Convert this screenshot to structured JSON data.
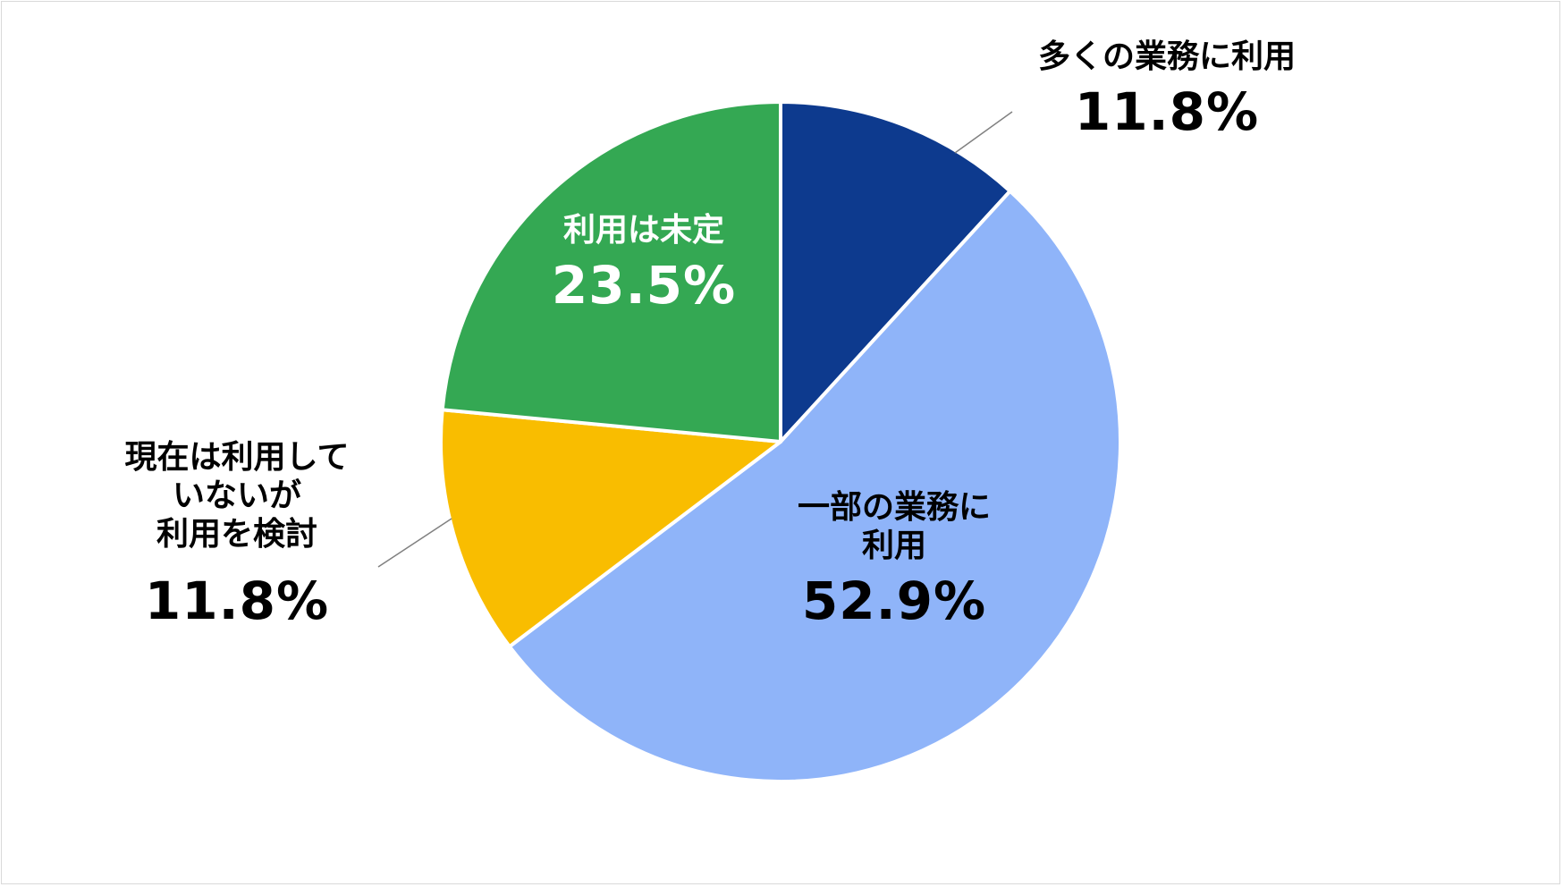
{
  "chart_data": {
    "type": "pie",
    "start_angle_deg": 0,
    "direction": "clockwise",
    "slices": [
      {
        "label": "多くの業務に利用",
        "value": 11.8,
        "display": "11.8%",
        "color": "#0d3a8e",
        "label_color": "#000000"
      },
      {
        "label": "一部の業務に\n利用",
        "value": 52.9,
        "display": "52.9%",
        "color": "#8fb4f9",
        "label_color": "#000000"
      },
      {
        "label": "現在は利用して\nいないが\n利用を検討",
        "value": 11.8,
        "display": "11.8%",
        "color": "#f9bd00",
        "label_color": "#000000"
      },
      {
        "label": "利用は未定",
        "value": 23.5,
        "display": "23.5%",
        "color": "#34a853",
        "label_color": "#ffffff"
      }
    ]
  }
}
